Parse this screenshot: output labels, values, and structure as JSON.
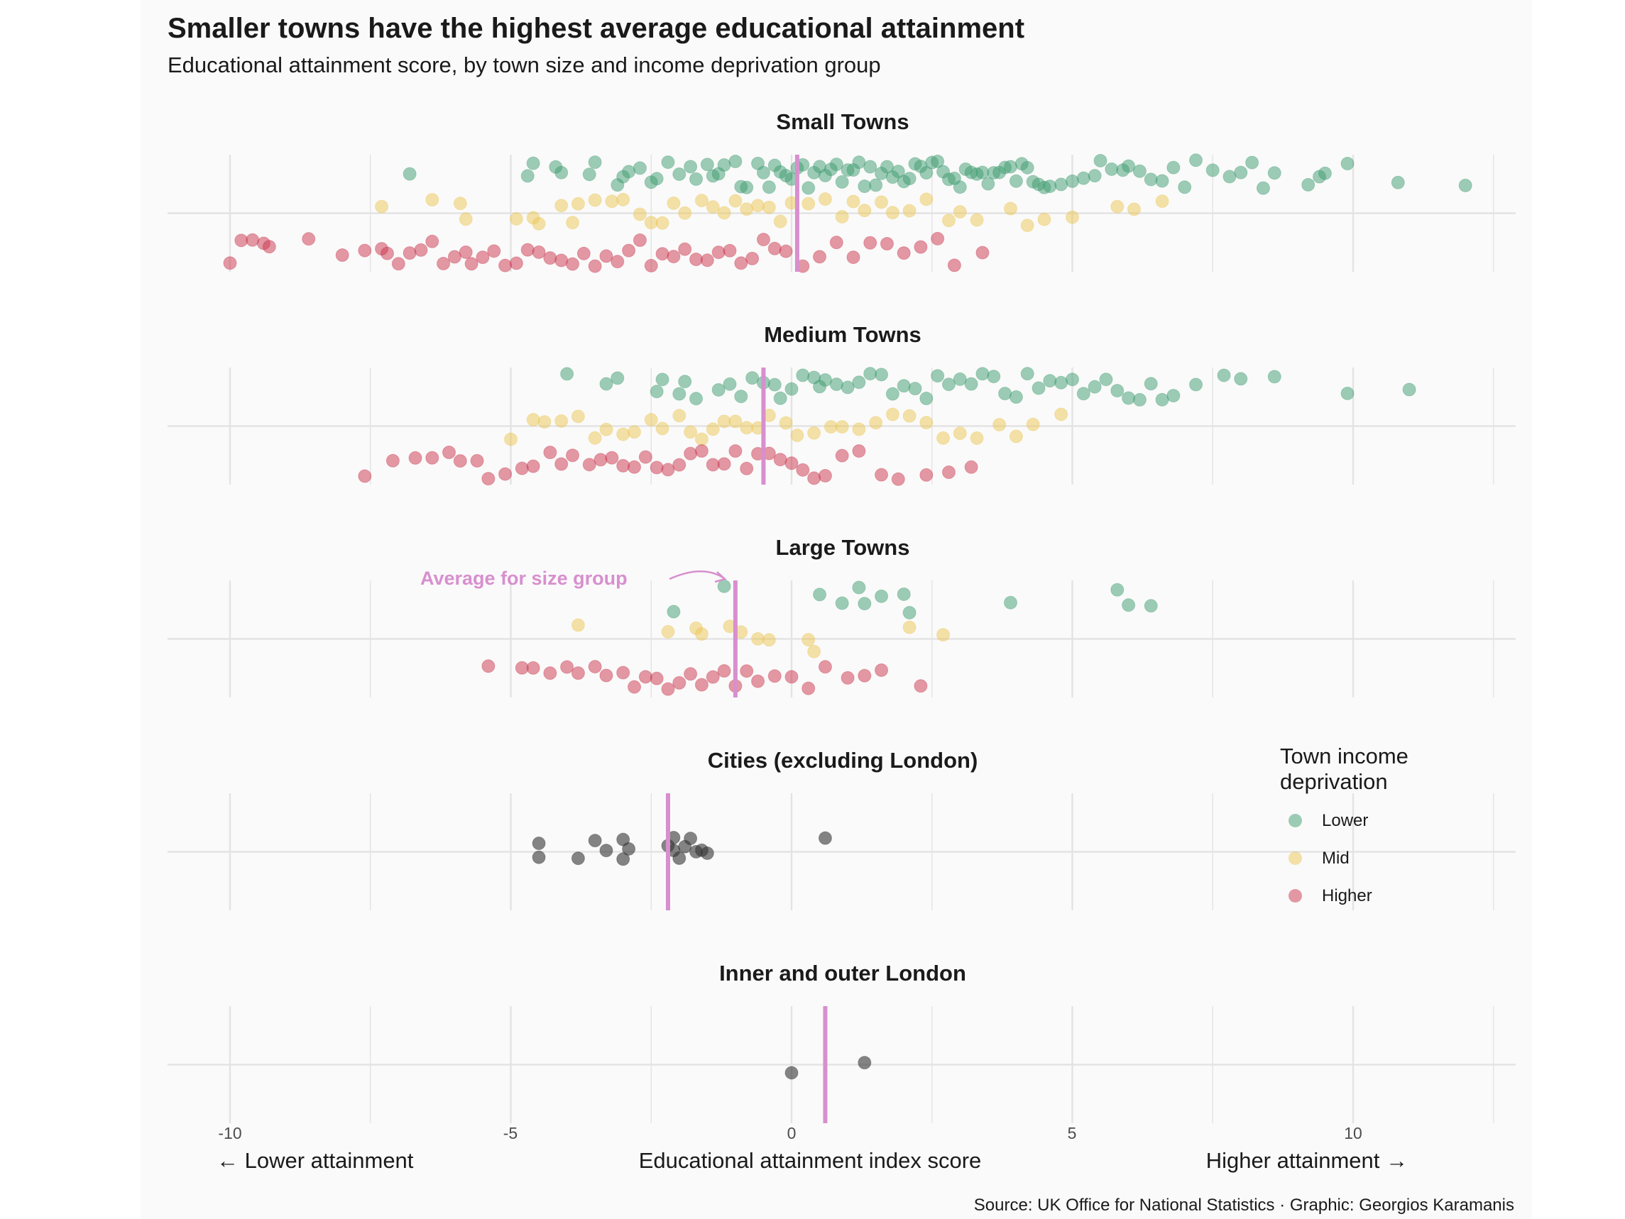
{
  "title": "Smaller towns have the highest average educational attainment",
  "subtitle": "Educational attainment score, by town size and income deprivation group",
  "caption": "Source: UK Office for National Statistics · Graphic: Georgios Karamanis",
  "legend": {
    "title": "Town income deprivation",
    "items": [
      {
        "label": "Lower",
        "color": "#3e9b70"
      },
      {
        "label": "Mid",
        "color": "#ebc654"
      },
      {
        "label": "Higher",
        "color": "#c9334b"
      }
    ]
  },
  "annotation": "Average for size group",
  "colors": {
    "lower": "#3e9b70",
    "mid": "#ebc654",
    "higher": "#c9334b",
    "city": "#333333",
    "average_line": "#d88fce",
    "grid": "#e3e3e3"
  },
  "chart_data": {
    "type": "scatter",
    "xlabel": "Educational attainment index score",
    "x_left_note": "← Lower attainment",
    "x_right_note": "Higher attainment →",
    "xlim": [
      -11,
      13
    ],
    "x_ticks": [
      -10,
      -5,
      0,
      5,
      10
    ],
    "grid": true,
    "legend_position": "right",
    "facets": [
      {
        "name": "Small Towns",
        "average": 0.1,
        "series": [
          {
            "group": "Lower",
            "values": [
              -6.8,
              -4.7,
              -4.6,
              -4.2,
              -4.1,
              -3.6,
              -3.5,
              -3.1,
              -3.0,
              -2.9,
              -2.7,
              -2.5,
              -2.4,
              -2.2,
              -2.0,
              -1.8,
              -1.7,
              -1.5,
              -1.4,
              -1.3,
              -1.2,
              -1.0,
              -0.9,
              -0.8,
              -0.6,
              -0.5,
              -0.4,
              -0.3,
              -0.2,
              -0.1,
              0.0,
              0.1,
              0.2,
              0.3,
              0.4,
              0.5,
              0.6,
              0.7,
              0.8,
              0.9,
              1.0,
              1.1,
              1.2,
              1.3,
              1.4,
              1.5,
              1.6,
              1.7,
              1.8,
              1.9,
              2.0,
              2.1,
              2.2,
              2.3,
              2.4,
              2.5,
              2.6,
              2.7,
              2.8,
              2.9,
              3.0,
              3.1,
              3.2,
              3.3,
              3.4,
              3.5,
              3.6,
              3.7,
              3.8,
              3.9,
              4.0,
              4.1,
              4.2,
              4.3,
              4.4,
              4.5,
              4.6,
              4.8,
              5.0,
              5.2,
              5.4,
              5.5,
              5.7,
              5.9,
              6.0,
              6.2,
              6.4,
              6.6,
              6.8,
              7.0,
              7.2,
              7.5,
              7.8,
              8.0,
              8.2,
              8.4,
              8.6,
              9.2,
              9.4,
              9.5,
              9.9,
              10.8,
              12.0
            ]
          },
          {
            "group": "Mid",
            "values": [
              -7.3,
              -6.4,
              -5.9,
              -5.8,
              -4.9,
              -4.6,
              -4.5,
              -4.1,
              -3.9,
              -3.8,
              -3.5,
              -3.2,
              -3.0,
              -2.7,
              -2.5,
              -2.3,
              -2.1,
              -1.9,
              -1.6,
              -1.4,
              -1.2,
              -1.0,
              -0.8,
              -0.6,
              -0.4,
              -0.2,
              0.0,
              0.3,
              0.6,
              0.9,
              1.1,
              1.3,
              1.6,
              1.8,
              2.1,
              2.4,
              2.8,
              3.0,
              3.3,
              3.9,
              4.2,
              4.5,
              5.0,
              5.8,
              6.1,
              6.6
            ]
          },
          {
            "group": "Higher",
            "values": [
              -10.0,
              -9.8,
              -9.6,
              -9.4,
              -9.3,
              -8.6,
              -8.0,
              -7.6,
              -7.3,
              -7.2,
              -7.0,
              -6.8,
              -6.6,
              -6.4,
              -6.2,
              -6.0,
              -5.8,
              -5.7,
              -5.5,
              -5.3,
              -5.1,
              -4.9,
              -4.7,
              -4.5,
              -4.3,
              -4.1,
              -3.9,
              -3.7,
              -3.5,
              -3.3,
              -3.1,
              -2.9,
              -2.7,
              -2.5,
              -2.3,
              -2.1,
              -1.9,
              -1.7,
              -1.5,
              -1.3,
              -1.1,
              -0.9,
              -0.7,
              -0.5,
              -0.3,
              -0.1,
              0.2,
              0.5,
              0.8,
              1.1,
              1.4,
              1.7,
              2.0,
              2.3,
              2.6,
              2.9,
              3.4
            ]
          }
        ]
      },
      {
        "name": "Medium Towns",
        "average": -0.5,
        "series": [
          {
            "group": "Lower",
            "values": [
              -4.0,
              -3.3,
              -3.1,
              -2.4,
              -2.3,
              -2.0,
              -1.9,
              -1.7,
              -1.3,
              -1.1,
              -0.9,
              -0.7,
              -0.5,
              -0.3,
              -0.2,
              0.0,
              0.2,
              0.4,
              0.5,
              0.6,
              0.8,
              1.0,
              1.2,
              1.4,
              1.6,
              1.8,
              2.0,
              2.2,
              2.4,
              2.6,
              2.8,
              3.0,
              3.2,
              3.4,
              3.6,
              3.8,
              4.0,
              4.2,
              4.4,
              4.6,
              4.8,
              5.0,
              5.2,
              5.4,
              5.6,
              5.8,
              6.0,
              6.2,
              6.4,
              6.6,
              6.8,
              7.2,
              7.7,
              8.0,
              8.6,
              9.9,
              11.0
            ]
          },
          {
            "group": "Mid",
            "values": [
              -5.0,
              -4.6,
              -4.4,
              -4.1,
              -3.8,
              -3.5,
              -3.3,
              -3.0,
              -2.8,
              -2.5,
              -2.3,
              -2.0,
              -1.8,
              -1.6,
              -1.4,
              -1.2,
              -1.0,
              -0.8,
              -0.6,
              -0.4,
              -0.1,
              0.1,
              0.4,
              0.7,
              0.9,
              1.2,
              1.5,
              1.8,
              2.1,
              2.4,
              2.7,
              3.0,
              3.3,
              3.7,
              4.0,
              4.3,
              4.8
            ]
          },
          {
            "group": "Higher",
            "values": [
              -7.6,
              -7.1,
              -6.7,
              -6.4,
              -6.1,
              -5.9,
              -5.6,
              -5.4,
              -5.1,
              -4.8,
              -4.6,
              -4.3,
              -4.1,
              -3.9,
              -3.6,
              -3.4,
              -3.2,
              -3.0,
              -2.8,
              -2.6,
              -2.4,
              -2.2,
              -2.0,
              -1.8,
              -1.6,
              -1.4,
              -1.2,
              -1.0,
              -0.8,
              -0.6,
              -0.4,
              -0.2,
              0.0,
              0.2,
              0.4,
              0.6,
              0.9,
              1.2,
              1.6,
              1.9,
              2.4,
              2.8,
              3.2
            ]
          }
        ]
      },
      {
        "name": "Large Towns",
        "average": -1.0,
        "series": [
          {
            "group": "Lower",
            "values": [
              -2.1,
              -1.2,
              0.5,
              0.9,
              1.2,
              1.3,
              1.6,
              2.0,
              2.1,
              3.9,
              5.8,
              6.0,
              6.4
            ]
          },
          {
            "group": "Mid",
            "values": [
              -3.8,
              -2.2,
              -1.7,
              -1.6,
              -1.1,
              -0.9,
              -0.6,
              -0.4,
              0.3,
              0.4,
              2.1,
              2.7
            ]
          },
          {
            "group": "Higher",
            "values": [
              -5.4,
              -4.8,
              -4.6,
              -4.3,
              -4.0,
              -3.8,
              -3.5,
              -3.3,
              -3.0,
              -2.8,
              -2.6,
              -2.4,
              -2.2,
              -2.0,
              -1.8,
              -1.6,
              -1.4,
              -1.2,
              -1.0,
              -0.8,
              -0.6,
              -0.3,
              0.0,
              0.3,
              0.6,
              1.0,
              1.3,
              1.6,
              2.3
            ]
          }
        ]
      },
      {
        "name": "Cities (excluding London)",
        "average": -2.2,
        "series": [
          {
            "group": "All",
            "values": [
              -4.5,
              -4.5,
              -3.8,
              -3.5,
              -3.3,
              -3.0,
              -3.0,
              -2.9,
              -2.2,
              -2.1,
              -2.1,
              -2.0,
              -1.9,
              -1.8,
              -1.7,
              -1.6,
              -1.5,
              0.6
            ]
          }
        ]
      },
      {
        "name": "Inner and outer London",
        "average": 0.6,
        "series": [
          {
            "group": "All",
            "values": [
              0.0,
              1.3
            ]
          }
        ]
      }
    ]
  }
}
